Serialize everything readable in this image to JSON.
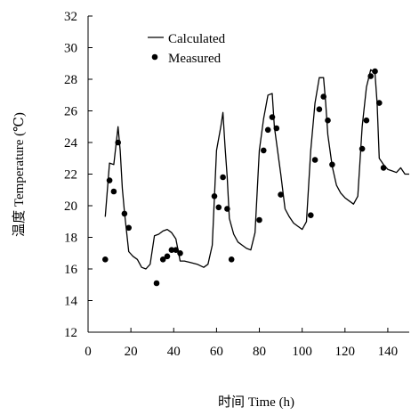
{
  "chart_data": {
    "type": "line",
    "xlabel": "时间 Time (h)",
    "ylabel": "温度 Temperature (℃)",
    "xlim": [
      0,
      150
    ],
    "ylim": [
      12,
      32
    ],
    "xticks": [
      0,
      20,
      40,
      60,
      80,
      100,
      120,
      140
    ],
    "yticks": [
      12,
      14,
      16,
      18,
      20,
      22,
      24,
      26,
      28,
      30,
      32
    ],
    "grid": false,
    "legend_position": "top-left",
    "series": [
      {
        "name": "Calculated",
        "style": "line",
        "x": [
          8,
          10,
          12,
          14,
          15,
          16,
          17,
          19,
          21,
          23,
          25,
          27,
          29,
          31,
          33,
          35,
          37,
          39,
          41,
          43,
          45,
          48,
          51,
          54,
          56,
          58,
          60,
          62,
          63,
          64,
          65,
          66,
          68,
          70,
          72,
          74,
          76,
          78,
          80,
          82,
          84,
          86,
          87,
          88,
          90,
          92,
          94,
          96,
          98,
          100,
          102,
          104,
          106,
          108,
          110,
          111,
          112,
          114,
          116,
          118,
          120,
          122,
          124,
          126,
          128,
          130,
          132,
          134,
          135,
          136,
          138,
          140,
          142,
          144,
          146,
          148,
          150
        ],
        "values": [
          19.3,
          22.7,
          22.6,
          25.0,
          23.5,
          21.1,
          19.6,
          17.1,
          16.8,
          16.6,
          16.1,
          16.0,
          16.3,
          18.1,
          18.2,
          18.4,
          18.5,
          18.3,
          17.9,
          16.5,
          16.5,
          16.4,
          16.3,
          16.1,
          16.3,
          17.5,
          23.5,
          25.0,
          25.9,
          23.7,
          21.8,
          19.2,
          18.2,
          17.7,
          17.5,
          17.3,
          17.2,
          18.3,
          23.5,
          25.5,
          27.0,
          27.1,
          25.0,
          24.0,
          22.0,
          19.8,
          19.3,
          18.9,
          18.7,
          18.5,
          19.0,
          23.5,
          26.5,
          28.1,
          28.1,
          26.5,
          24.5,
          22.5,
          21.3,
          20.8,
          20.5,
          20.3,
          20.1,
          20.6,
          25.0,
          27.5,
          28.6,
          28.4,
          26.5,
          23.0,
          22.6,
          22.3,
          22.2,
          22.1,
          22.4,
          22.0,
          22.0
        ]
      },
      {
        "name": "Measured",
        "style": "points",
        "x": [
          8,
          10,
          12,
          14,
          17,
          19,
          32,
          35,
          37,
          39,
          41,
          43,
          59,
          61,
          63,
          65,
          67,
          80,
          82,
          84,
          86,
          88,
          90,
          104,
          106,
          108,
          110,
          112,
          114,
          128,
          130,
          132,
          134,
          136,
          138
        ],
        "values": [
          16.6,
          21.6,
          20.9,
          24.0,
          19.5,
          18.6,
          15.1,
          16.6,
          16.8,
          17.2,
          17.2,
          17.0,
          20.6,
          19.9,
          21.8,
          19.8,
          16.6,
          19.1,
          23.5,
          24.8,
          25.6,
          24.9,
          20.7,
          19.4,
          22.9,
          26.1,
          26.9,
          25.4,
          22.6,
          23.6,
          25.4,
          28.2,
          28.5,
          26.5,
          22.4
        ]
      }
    ]
  }
}
